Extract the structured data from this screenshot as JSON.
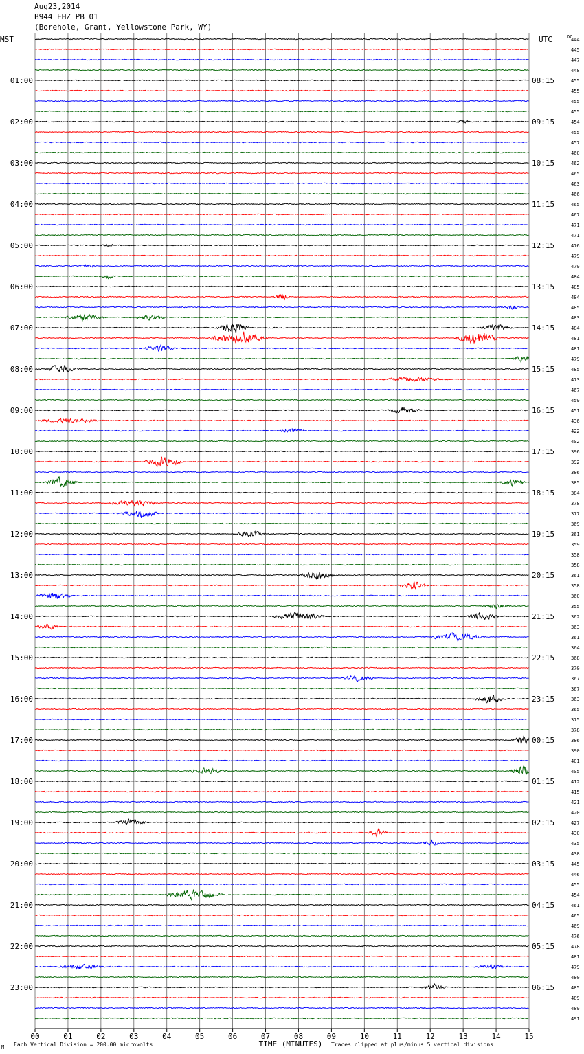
{
  "header": {
    "date": "Aug23,2014",
    "station": "B944 EHZ PB 01",
    "location": "(Borehole, Grant, Yellowstone Park, WY)"
  },
  "chart_data": {
    "type": "line",
    "title": "Aug23,2014 B944 EHZ PB 01 (Borehole, Grant, Yellowstone Park, WY)",
    "left_tz": "MST",
    "right_tz": "UTC",
    "dc_label": "DC",
    "xlabel": "TIME (MINUTES)",
    "xlim": [
      0,
      15
    ],
    "x_ticks": [
      "00",
      "01",
      "02",
      "03",
      "04",
      "05",
      "06",
      "07",
      "08",
      "09",
      "10",
      "11",
      "12",
      "13",
      "14",
      "15"
    ],
    "trace_colors": [
      "#000000",
      "#ff0000",
      "#0000ff",
      "#006400"
    ],
    "left_labels": [
      "01:00",
      "02:00",
      "03:00",
      "04:00",
      "05:00",
      "06:00",
      "07:00",
      "08:00",
      "09:00",
      "10:00",
      "11:00",
      "12:00",
      "13:00",
      "14:00",
      "15:00",
      "16:00",
      "17:00",
      "18:00",
      "19:00",
      "20:00",
      "21:00",
      "22:00",
      "23:00"
    ],
    "right_labels": [
      "08:15",
      "09:15",
      "10:15",
      "11:15",
      "12:15",
      "13:15",
      "14:15",
      "15:15",
      "16:15",
      "17:15",
      "18:15",
      "19:15",
      "20:15",
      "21:15",
      "22:15",
      "23:15",
      "00:15",
      "01:15",
      "02:15",
      "03:15",
      "04:15",
      "05:15",
      "06:15"
    ],
    "dc_values": [
      "444",
      "445",
      "447",
      "448",
      "455",
      "455",
      "455",
      "455",
      "454",
      "455",
      "457",
      "460",
      "462",
      "465",
      "463",
      "466",
      "465",
      "467",
      "471",
      "471",
      "476",
      "479",
      "479",
      "484",
      "485",
      "484",
      "485",
      "483",
      "484",
      "481",
      "481",
      "479",
      "485",
      "473",
      "467",
      "459",
      "451",
      "436",
      "422",
      "402",
      "396",
      "392",
      "386",
      "385",
      "384",
      "378",
      "377",
      "369",
      "361",
      "359",
      "358",
      "358",
      "361",
      "358",
      "360",
      "355",
      "362",
      "363",
      "361",
      "364",
      "368",
      "370",
      "367",
      "367",
      "363",
      "365",
      "375",
      "378",
      "386",
      "390",
      "401",
      "405",
      "412",
      "415",
      "421",
      "420",
      "427",
      "430",
      "435",
      "438",
      "445",
      "446",
      "455",
      "454",
      "461",
      "465",
      "469",
      "476",
      "478",
      "481",
      "479",
      "480",
      "485",
      "489",
      "489",
      "491"
    ],
    "activity": [
      {
        "trace": 8,
        "x": 13.0,
        "amp": 2.5,
        "width": 0.4
      },
      {
        "trace": 20,
        "x": 2.2,
        "amp": 2.5,
        "width": 0.5
      },
      {
        "trace": 22,
        "x": 1.6,
        "amp": 3,
        "width": 0.5
      },
      {
        "trace": 23,
        "x": 2.2,
        "amp": 4,
        "width": 0.5
      },
      {
        "trace": 25,
        "x": 7.5,
        "amp": 6,
        "width": 0.5
      },
      {
        "trace": 26,
        "x": 14.5,
        "amp": 4,
        "width": 0.5
      },
      {
        "trace": 27,
        "x": 1.5,
        "amp": 6,
        "width": 1.2
      },
      {
        "trace": 27,
        "x": 3.5,
        "amp": 4,
        "width": 1.0
      },
      {
        "trace": 28,
        "x": 6.0,
        "amp": 10,
        "width": 1.0
      },
      {
        "trace": 28,
        "x": 14.0,
        "amp": 6,
        "width": 1.0
      },
      {
        "trace": 29,
        "x": 6.2,
        "amp": 13,
        "width": 1.8
      },
      {
        "trace": 29,
        "x": 13.4,
        "amp": 11,
        "width": 1.4
      },
      {
        "trace": 30,
        "x": 3.8,
        "amp": 6,
        "width": 1.0
      },
      {
        "trace": 31,
        "x": 14.8,
        "amp": 7,
        "width": 0.6
      },
      {
        "trace": 32,
        "x": 0.8,
        "amp": 7,
        "width": 1.0
      },
      {
        "trace": 33,
        "x": 11.5,
        "amp": 4,
        "width": 2.0
      },
      {
        "trace": 36,
        "x": 11.2,
        "amp": 7,
        "width": 1.0
      },
      {
        "trace": 37,
        "x": 1.0,
        "amp": 4,
        "width": 2.0
      },
      {
        "trace": 38,
        "x": 7.8,
        "amp": 5,
        "width": 0.8
      },
      {
        "trace": 41,
        "x": 3.9,
        "amp": 9,
        "width": 1.2
      },
      {
        "trace": 43,
        "x": 0.8,
        "amp": 10,
        "width": 1.0
      },
      {
        "trace": 43,
        "x": 14.5,
        "amp": 6,
        "width": 0.8
      },
      {
        "trace": 45,
        "x": 3.0,
        "amp": 6,
        "width": 1.5
      },
      {
        "trace": 46,
        "x": 3.2,
        "amp": 8,
        "width": 1.2
      },
      {
        "trace": 48,
        "x": 6.5,
        "amp": 5,
        "width": 1.0
      },
      {
        "trace": 52,
        "x": 8.6,
        "amp": 8,
        "width": 1.2
      },
      {
        "trace": 53,
        "x": 11.5,
        "amp": 7,
        "width": 1.0
      },
      {
        "trace": 54,
        "x": 0.6,
        "amp": 7,
        "width": 1.2
      },
      {
        "trace": 55,
        "x": 14.0,
        "amp": 5,
        "width": 0.8
      },
      {
        "trace": 56,
        "x": 8.0,
        "amp": 8,
        "width": 1.6
      },
      {
        "trace": 56,
        "x": 13.6,
        "amp": 6,
        "width": 1.0
      },
      {
        "trace": 57,
        "x": 0.4,
        "amp": 5,
        "width": 0.8
      },
      {
        "trace": 58,
        "x": 12.8,
        "amp": 8,
        "width": 1.6
      },
      {
        "trace": 62,
        "x": 9.8,
        "amp": 5,
        "width": 1.0
      },
      {
        "trace": 64,
        "x": 13.8,
        "amp": 7,
        "width": 1.0
      },
      {
        "trace": 68,
        "x": 14.8,
        "amp": 9,
        "width": 0.6
      },
      {
        "trace": 71,
        "x": 14.8,
        "amp": 10,
        "width": 0.8
      },
      {
        "trace": 71,
        "x": 5.2,
        "amp": 5,
        "width": 1.2
      },
      {
        "trace": 76,
        "x": 2.9,
        "amp": 5,
        "width": 1.0
      },
      {
        "trace": 77,
        "x": 10.4,
        "amp": 7,
        "width": 0.6
      },
      {
        "trace": 78,
        "x": 12.0,
        "amp": 5,
        "width": 0.6
      },
      {
        "trace": 83,
        "x": 4.8,
        "amp": 9,
        "width": 1.8
      },
      {
        "trace": 90,
        "x": 1.4,
        "amp": 4,
        "width": 1.5
      },
      {
        "trace": 90,
        "x": 13.8,
        "amp": 4,
        "width": 1.0
      },
      {
        "trace": 92,
        "x": 12.1,
        "amp": 6,
        "width": 0.8
      }
    ]
  },
  "footer": {
    "vertical_division": "Each Vertical Division =  200.00 microvolts",
    "clip_note": "Traces clipped at plus/minus 5 vertical divisions",
    "mark": "M"
  }
}
